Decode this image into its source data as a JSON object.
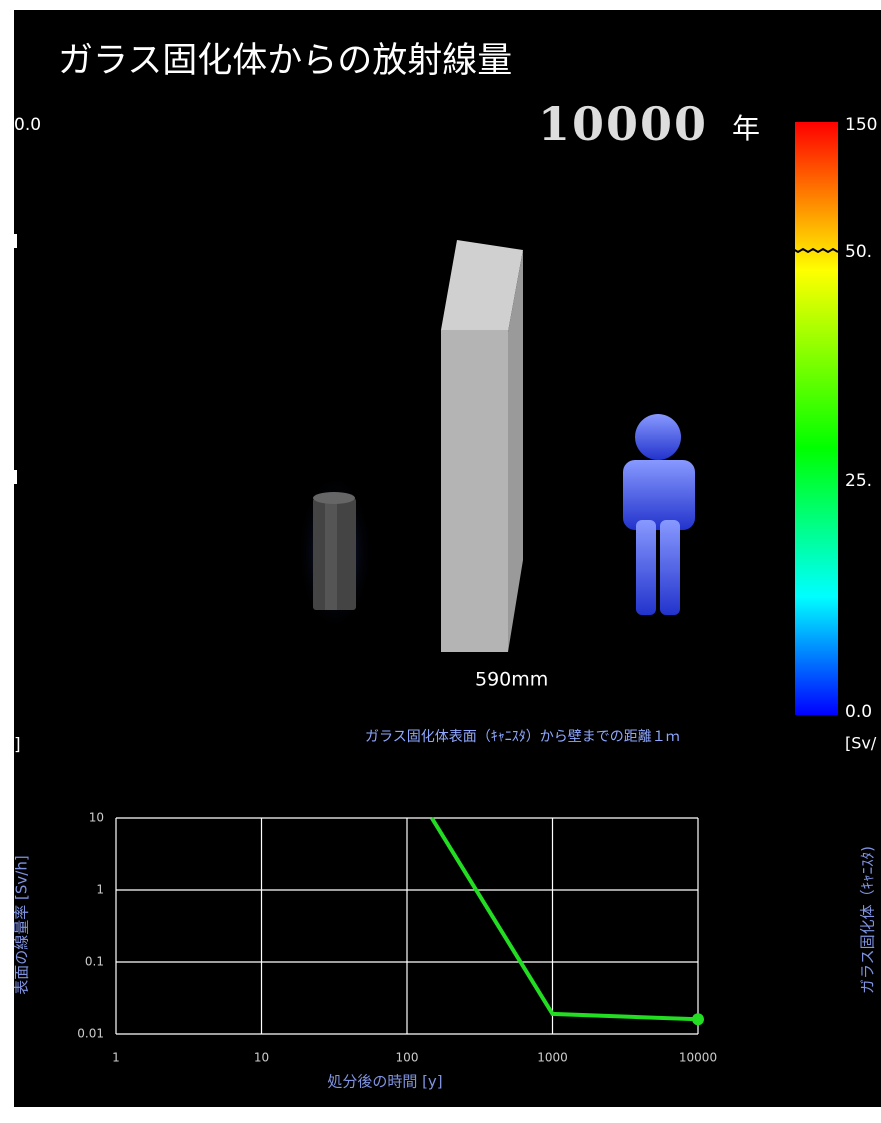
{
  "header": {
    "title": "ガラス固化体からの放射線量",
    "year": "10000",
    "year_unit": "年"
  },
  "left_panel": {
    "top_label": "0.0",
    "bottom_label": "]"
  },
  "scene": {
    "wall_thickness": "590mm",
    "caption": "ガラス固化体表面（ｷｬﾆｽﾀ）から壁までの距離１ｍ"
  },
  "colorbar": {
    "labels": [
      "150",
      "50.",
      "25.",
      "0.0"
    ],
    "unit": "[Sv/"
  },
  "side_label": "ガラス固化体（ｷｬﾆｽﾀ)",
  "chart_data": {
    "type": "line",
    "x_label": "処分後の時間 [y]",
    "y_label": "表面の線量率 [Sv/h]",
    "x": [
      148,
      1000,
      10000
    ],
    "series": [
      {
        "color": "#22dd22",
        "values": [
          10,
          0.019,
          0.016
        ]
      }
    ],
    "xlim": [
      1,
      10000
    ],
    "ylim": [
      0.01,
      10
    ],
    "xlog": true,
    "ylog": true,
    "xticks": [
      1,
      10,
      100,
      1000,
      10000
    ],
    "yticks": [
      10,
      1,
      0.1,
      0.01
    ],
    "grid": true
  }
}
